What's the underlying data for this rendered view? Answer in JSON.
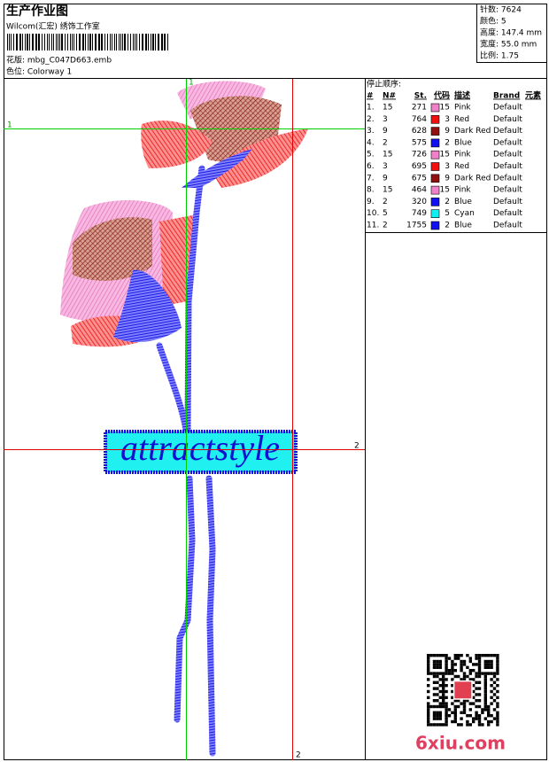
{
  "header": {
    "title": "生产作业图",
    "company": "Wilcom(汇宏) 绣饰工作室",
    "file": "花版: mbg_C047D663.emb",
    "colorway": "色位: Colorway 1"
  },
  "stats": [
    "针数: 7624",
    "颜色: 5",
    "高度: 147.4 mm",
    "宽度: 55.0 mm",
    "比例: 1.75"
  ],
  "table": {
    "title": "停止顺序:",
    "columns": [
      "#",
      "N#",
      "St.",
      "代码",
      "描述",
      "Brand",
      "元素"
    ],
    "rows": [
      {
        "cells": [
          "1.",
          "15",
          "271",
          "15",
          "Pink",
          "Default"
        ],
        "color": "#f080c8"
      },
      {
        "cells": [
          "2.",
          "3",
          "764",
          "3",
          "Red",
          "Default"
        ],
        "color": "#f01010"
      },
      {
        "cells": [
          "3.",
          "9",
          "628",
          "9",
          "Dark Red",
          "Default"
        ],
        "color": "#901010"
      },
      {
        "cells": [
          "4.",
          "2",
          "575",
          "2",
          "Blue",
          "Default"
        ],
        "color": "#1010f0"
      },
      {
        "cells": [
          "5.",
          "15",
          "726",
          "15",
          "Pink",
          "Default"
        ],
        "color": "#f080c8"
      },
      {
        "cells": [
          "6.",
          "3",
          "695",
          "3",
          "Red",
          "Default"
        ],
        "color": "#f01010"
      },
      {
        "cells": [
          "7.",
          "9",
          "675",
          "9",
          "Dark Red",
          "Default"
        ],
        "color": "#901010"
      },
      {
        "cells": [
          "8.",
          "15",
          "464",
          "15",
          "Pink",
          "Default"
        ],
        "color": "#f080c8"
      },
      {
        "cells": [
          "9.",
          "2",
          "320",
          "2",
          "Blue",
          "Default"
        ],
        "color": "#1010f0"
      },
      {
        "cells": [
          "10.",
          "5",
          "749",
          "5",
          "Cyan",
          "Default"
        ],
        "color": "#10f0f0"
      },
      {
        "cells": [
          "11.",
          "2",
          "1755",
          "2",
          "Blue",
          "Default"
        ],
        "color": "#1010f0"
      }
    ]
  },
  "design_text": "attractstyle",
  "guides": {
    "green_v": "1",
    "green_h": "1",
    "red_h": "2",
    "red_v": "2"
  },
  "watermark": "6xiu.com"
}
